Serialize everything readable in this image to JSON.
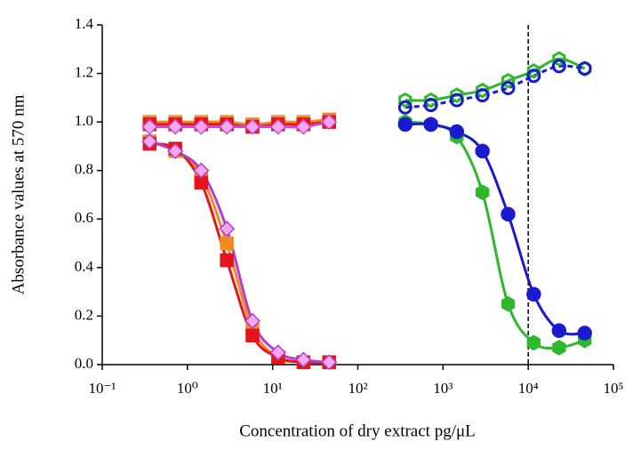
{
  "chart_data": {
    "type": "scatter",
    "xlabel": "Concentration of dry extract pg/μL",
    "ylabel": "Absorbance values at 570 nm",
    "xscale": "log",
    "xlim": [
      0.1,
      100000
    ],
    "xticks": [
      {
        "value": 0.1,
        "label": "10⁻¹"
      },
      {
        "value": 1,
        "label": "10⁰"
      },
      {
        "value": 10,
        "label": "10¹"
      },
      {
        "value": 100,
        "label": "10²"
      },
      {
        "value": 1000,
        "label": "10³"
      },
      {
        "value": 10000,
        "label": "10⁴"
      },
      {
        "value": 100000,
        "label": "10⁵"
      }
    ],
    "ylim": [
      0,
      1.4
    ],
    "yticks": [
      {
        "value": 0,
        "label": "0.0"
      },
      0.2,
      0.4,
      0.6,
      0.8,
      {
        "value": 1,
        "label": "1.0"
      },
      1.2,
      1.4
    ],
    "vline": {
      "x": 10000,
      "color": "#000000",
      "dashed": true
    },
    "series": [
      {
        "x": [
          0.36,
          0.72,
          1.45,
          2.9,
          5.8,
          11.6,
          23,
          46
        ],
        "values": [
          1.0,
          1.0,
          1.0,
          1.0,
          0.99,
          1.0,
          1.0,
          1.01
        ],
        "color": "#f08a24",
        "fill": "#f08a24",
        "marker": "square",
        "dashed": false
      },
      {
        "x": [
          0.36,
          0.72,
          1.45,
          2.9,
          5.8,
          11.6,
          23,
          46
        ],
        "values": [
          0.99,
          0.99,
          0.99,
          0.99,
          0.98,
          0.99,
          0.99,
          1.0
        ],
        "color": "#e8141c",
        "fill": "#e8141c",
        "marker": "square",
        "dashed": false
      },
      {
        "x": [
          0.36,
          0.72,
          1.45,
          2.9,
          5.8,
          11.6,
          23,
          46
        ],
        "values": [
          0.98,
          0.98,
          0.98,
          0.98,
          0.98,
          0.98,
          0.98,
          1.0
        ],
        "color": "#c050d8",
        "fill": "#f2a8ec",
        "marker": "diamond",
        "dashed": false
      },
      {
        "x": [
          0.36,
          0.72,
          1.45,
          2.9,
          5.8,
          11.6,
          23,
          46
        ],
        "values": [
          0.92,
          0.88,
          0.78,
          0.5,
          0.15,
          0.03,
          0.01,
          0.01
        ],
        "color": "#f08a24",
        "fill": "#f08a24",
        "marker": "square",
        "dashed": false
      },
      {
        "x": [
          0.36,
          0.72,
          1.45,
          2.9,
          5.8,
          11.6,
          23,
          46
        ],
        "values": [
          0.91,
          0.89,
          0.75,
          0.43,
          0.12,
          0.03,
          0.01,
          0.01
        ],
        "color": "#e8141c",
        "fill": "#e8141c",
        "marker": "square",
        "dashed": false
      },
      {
        "x": [
          0.36,
          0.72,
          1.45,
          2.9,
          5.8,
          11.6,
          23,
          46
        ],
        "values": [
          0.92,
          0.88,
          0.8,
          0.56,
          0.18,
          0.05,
          0.02,
          0.01
        ],
        "color": "#b040d0",
        "fill": "#f2a8ec",
        "marker": "diamond",
        "dashed": false
      },
      {
        "x": [
          360,
          720,
          1450,
          2900,
          5800,
          11600,
          23000,
          46000
        ],
        "values": [
          1.09,
          1.09,
          1.11,
          1.13,
          1.17,
          1.21,
          1.26,
          1.22
        ],
        "color": "#2db82d",
        "fill": "none",
        "marker": "hexagon",
        "dashed": false
      },
      {
        "x": [
          360,
          720,
          1450,
          2900,
          5800,
          11600,
          23000,
          46000
        ],
        "values": [
          1.06,
          1.07,
          1.09,
          1.11,
          1.14,
          1.19,
          1.23,
          1.22
        ],
        "color": "#1a1ad0",
        "fill": "none",
        "marker": "circle",
        "dashed": true
      },
      {
        "x": [
          360,
          720,
          1450,
          2900,
          5800,
          11600,
          23000,
          46000
        ],
        "values": [
          1.0,
          0.99,
          0.94,
          0.71,
          0.25,
          0.09,
          0.07,
          0.1
        ],
        "color": "#2db82d",
        "fill": "#2db82d",
        "marker": "hexagon",
        "dashed": false
      },
      {
        "x": [
          360,
          720,
          1450,
          2900,
          5800,
          11600,
          23000,
          46000
        ],
        "values": [
          0.99,
          0.99,
          0.96,
          0.88,
          0.62,
          0.29,
          0.14,
          0.13
        ],
        "color": "#1a1ad0",
        "fill": "#1a1ad0",
        "marker": "circle",
        "dashed": false
      }
    ]
  }
}
